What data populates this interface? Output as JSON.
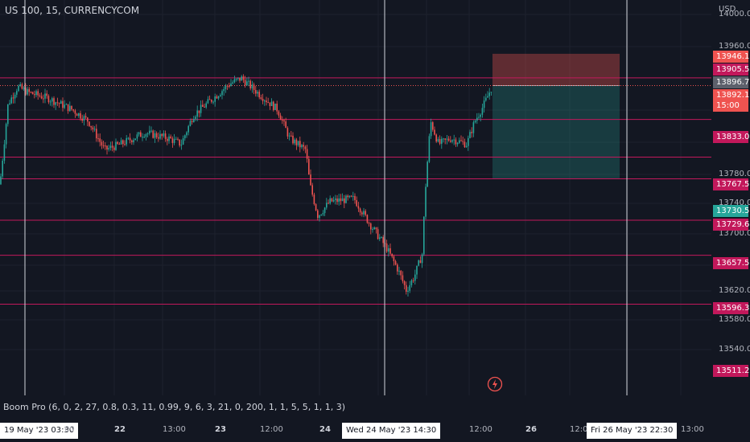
{
  "header": {
    "symbol": "US 100, 15, CURRENCYCOM",
    "currency": "USD"
  },
  "price_axis": {
    "ticks": [
      "14000.0",
      "13960.0",
      "13780.0",
      "13740.0",
      "13700.0",
      "13620.0",
      "13580.0",
      "13540.0"
    ]
  },
  "price_badges": [
    {
      "label": "13946.1",
      "style": "red"
    },
    {
      "label": "13905.5",
      "style": "level"
    },
    {
      "label": "13896.7",
      "style": "gray"
    },
    {
      "label": "13892.1",
      "sub": "15:00",
      "style": "red"
    },
    {
      "label": "13833.0",
      "style": "level"
    },
    {
      "label": "13767.5",
      "style": "level"
    },
    {
      "label": "13730.5",
      "style": "green"
    },
    {
      "label": "13729.6",
      "style": "level"
    },
    {
      "label": "13657.5",
      "style": "level"
    },
    {
      "label": "13596.3",
      "style": "level"
    },
    {
      "label": "13511.2",
      "style": "level"
    }
  ],
  "indicator": {
    "label": "Boom Pro (6, 0, 2, 27, 0.8, 0.3, 11, 0.99, 9, 6, 3, 21, 0, 200, 1, 1, 5, 5, 1, 1, 3)"
  },
  "time_axis": {
    "start_box": "19 May '23   03:30",
    "ticks": [
      {
        "label": "00",
        "bold": false
      },
      {
        "label": "22",
        "bold": true
      },
      {
        "label": "13:00",
        "bold": false
      },
      {
        "label": "23",
        "bold": true
      },
      {
        "label": "12:00",
        "bold": false
      },
      {
        "label": "24",
        "bold": true
      },
      {
        "label": "5",
        "bold": false
      },
      {
        "label": "12:00",
        "bold": false
      },
      {
        "label": "26",
        "bold": true
      },
      {
        "label": "12:00",
        "bold": false
      },
      {
        "label": "13:00",
        "bold": false
      }
    ],
    "cursor_box": "Wed 24 May '23   14:30",
    "end_box": "Fri 26 May '23   22:30"
  },
  "colors": {
    "background": "#131722",
    "level_line": "#c2185b",
    "up_candle": "#26a69a",
    "down_candle": "#ef5350",
    "stop_zone": "rgba(239,83,80,0.35)",
    "target_zone": "rgba(38,166,154,0.25)"
  },
  "chart_data": {
    "type": "candlestick",
    "ylim": [
      13500,
      14000
    ],
    "horizontal_levels": [
      13905.5,
      13833.0,
      13767.5,
      13729.6,
      13657.5,
      13596.3,
      13511.2
    ],
    "price_path": [
      [
        0,
        13720
      ],
      [
        10,
        13860
      ],
      [
        22,
        13890
      ],
      [
        35,
        13880
      ],
      [
        60,
        13870
      ],
      [
        90,
        13850
      ],
      [
        110,
        13830
      ],
      [
        130,
        13780
      ],
      [
        150,
        13790
      ],
      [
        180,
        13810
      ],
      [
        210,
        13800
      ],
      [
        225,
        13790
      ],
      [
        240,
        13840
      ],
      [
        265,
        13870
      ],
      [
        285,
        13895
      ],
      [
        300,
        13905
      ],
      [
        320,
        13880
      ],
      [
        345,
        13850
      ],
      [
        360,
        13800
      ],
      [
        380,
        13780
      ],
      [
        385,
        13720
      ],
      [
        395,
        13665
      ],
      [
        410,
        13690
      ],
      [
        440,
        13695
      ],
      [
        460,
        13650
      ],
      [
        480,
        13610
      ],
      [
        495,
        13570
      ],
      [
        505,
        13535
      ],
      [
        515,
        13560
      ],
      [
        525,
        13600
      ],
      [
        528,
        13700
      ],
      [
        535,
        13830
      ],
      [
        545,
        13790
      ],
      [
        560,
        13800
      ],
      [
        580,
        13790
      ],
      [
        590,
        13830
      ],
      [
        600,
        13855
      ],
      [
        612,
        13892
      ]
    ],
    "position": {
      "entry": 13892.1,
      "stop": 13946.1,
      "target": 13730.5
    }
  }
}
